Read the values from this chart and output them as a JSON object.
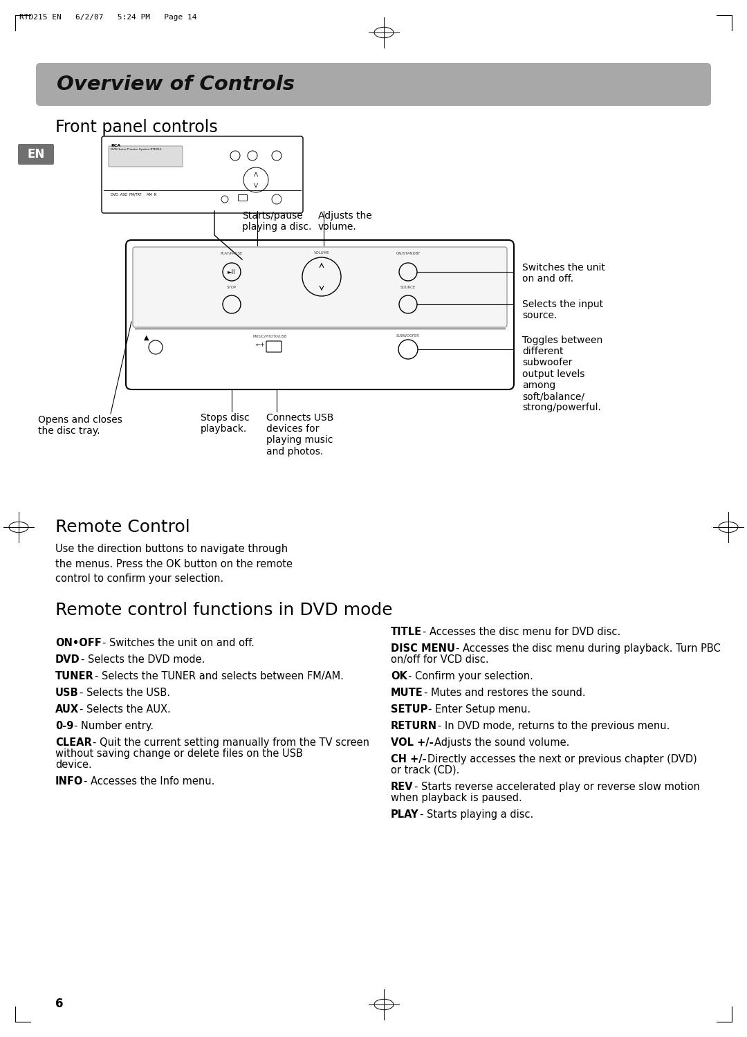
{
  "page_header": "RTD215 EN   6/2/07   5:24 PM   Page 14",
  "main_title": "Overview of Controls",
  "section1_title": "Front panel controls",
  "en_label": "EN",
  "callout_starts_pause": "Starts/pause\nplaying a disc.",
  "callout_adjusts": "Adjusts the\nvolume.",
  "callout_switches": "Switches the unit\non and off.",
  "callout_selects_input": "Selects the input\nsource.",
  "callout_toggles": "Toggles between\ndifferent\nsubwoofer\noutput levels\namong\nsoft/balance/\nstrong/powerful.",
  "callout_opens": "Opens and closes\nthe disc tray.",
  "callout_stops": "Stops disc\nplayback.",
  "callout_connects": "Connects USB\ndevices for\nplaying music\nand photos.",
  "section2_title": "Remote Control",
  "remote_control_desc": "Use the direction buttons to navigate through\nthe menus. Press the OK button on the remote\ncontrol to confirm your selection.",
  "section3_title": "Remote control functions in DVD mode",
  "left_items": [
    {
      "bold": "ON•OFF",
      "rest": " - Switches the unit on and off."
    },
    {
      "bold": "DVD",
      "rest": " - Selects the DVD mode."
    },
    {
      "bold": "TUNER",
      "rest": " - Selects the TUNER and selects between FM/AM."
    },
    {
      "bold": "USB",
      "rest": "  - Selects the USB."
    },
    {
      "bold": "AUX",
      "rest": " - Selects the AUX."
    },
    {
      "bold": "0-9",
      "rest": " - Number entry."
    },
    {
      "bold": "CLEAR",
      "rest": " - Quit the current setting manually from the TV screen without saving change or delete files on the USB device."
    },
    {
      "bold": "INFO",
      "rest": " - Accesses the Info menu."
    }
  ],
  "right_items": [
    {
      "bold": "TITLE",
      "rest": " - Accesses the disc menu for DVD disc."
    },
    {
      "bold": "DISC MENU",
      "rest": " - Accesses the disc menu during playback. Turn PBC on/off for VCD disc."
    },
    {
      "bold": "OK",
      "rest": " - Confirm your selection."
    },
    {
      "bold": "MUTE",
      "rest": " - Mutes and restores the sound."
    },
    {
      "bold": "SETUP",
      "rest": " - Enter Setup menu."
    },
    {
      "bold": "RETURN",
      "rest": " - In DVD mode, returns to the previous menu."
    },
    {
      "bold": "VOL +/-",
      "rest": "  Adjusts the sound volume."
    },
    {
      "bold": "CH +/-",
      "rest": "  Directly accesses the next or previous chapter (DVD) or track (CD)."
    },
    {
      "bold": "REV",
      "rest": " - Starts reverse accelerated play or reverse slow motion when playback is paused."
    },
    {
      "bold": "PLAY",
      "rest": " - Starts playing a disc."
    }
  ],
  "page_number": "6",
  "bg_color": "#ffffff",
  "title_bar_color": "#a8a8a8",
  "title_text_color": "#111111",
  "body_text_color": "#111111",
  "en_bg_color": "#707070",
  "en_text_color": "#ffffff"
}
